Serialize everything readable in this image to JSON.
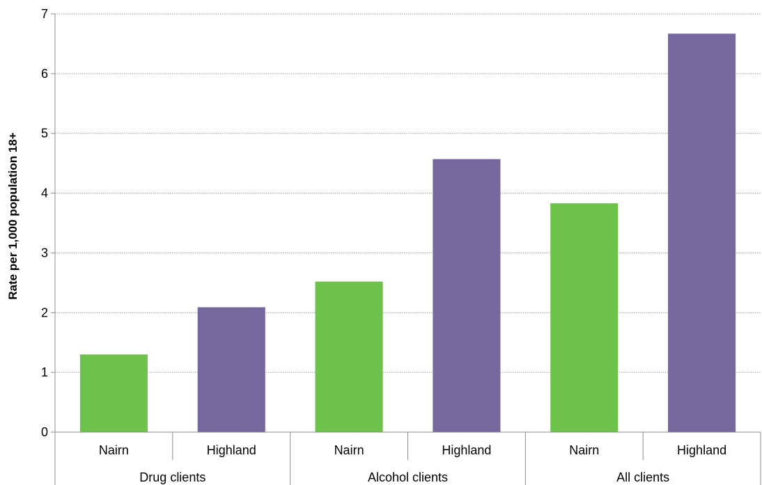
{
  "chart_data": {
    "type": "bar",
    "ylabel": "Rate per 1,000 population 18+",
    "xlabel": "",
    "title": "",
    "ylim": [
      0,
      7
    ],
    "yticks": [
      0,
      1,
      2,
      3,
      4,
      5,
      6,
      7
    ],
    "grid": true,
    "groups": [
      {
        "label": "Drug clients",
        "bars": [
          {
            "label": "Nairn",
            "value": 1.3,
            "color": "#6cc24a"
          },
          {
            "label": "Highland",
            "value": 2.09,
            "color": "#76689f"
          }
        ]
      },
      {
        "label": "Alcohol clients",
        "bars": [
          {
            "label": "Nairn",
            "value": 2.52,
            "color": "#6cc24a"
          },
          {
            "label": "Highland",
            "value": 4.57,
            "color": "#76689f"
          }
        ]
      },
      {
        "label": "All clients",
        "bars": [
          {
            "label": "Nairn",
            "value": 3.83,
            "color": "#6cc24a"
          },
          {
            "label": "Highland",
            "value": 6.67,
            "color": "#76689f"
          }
        ]
      }
    ]
  }
}
